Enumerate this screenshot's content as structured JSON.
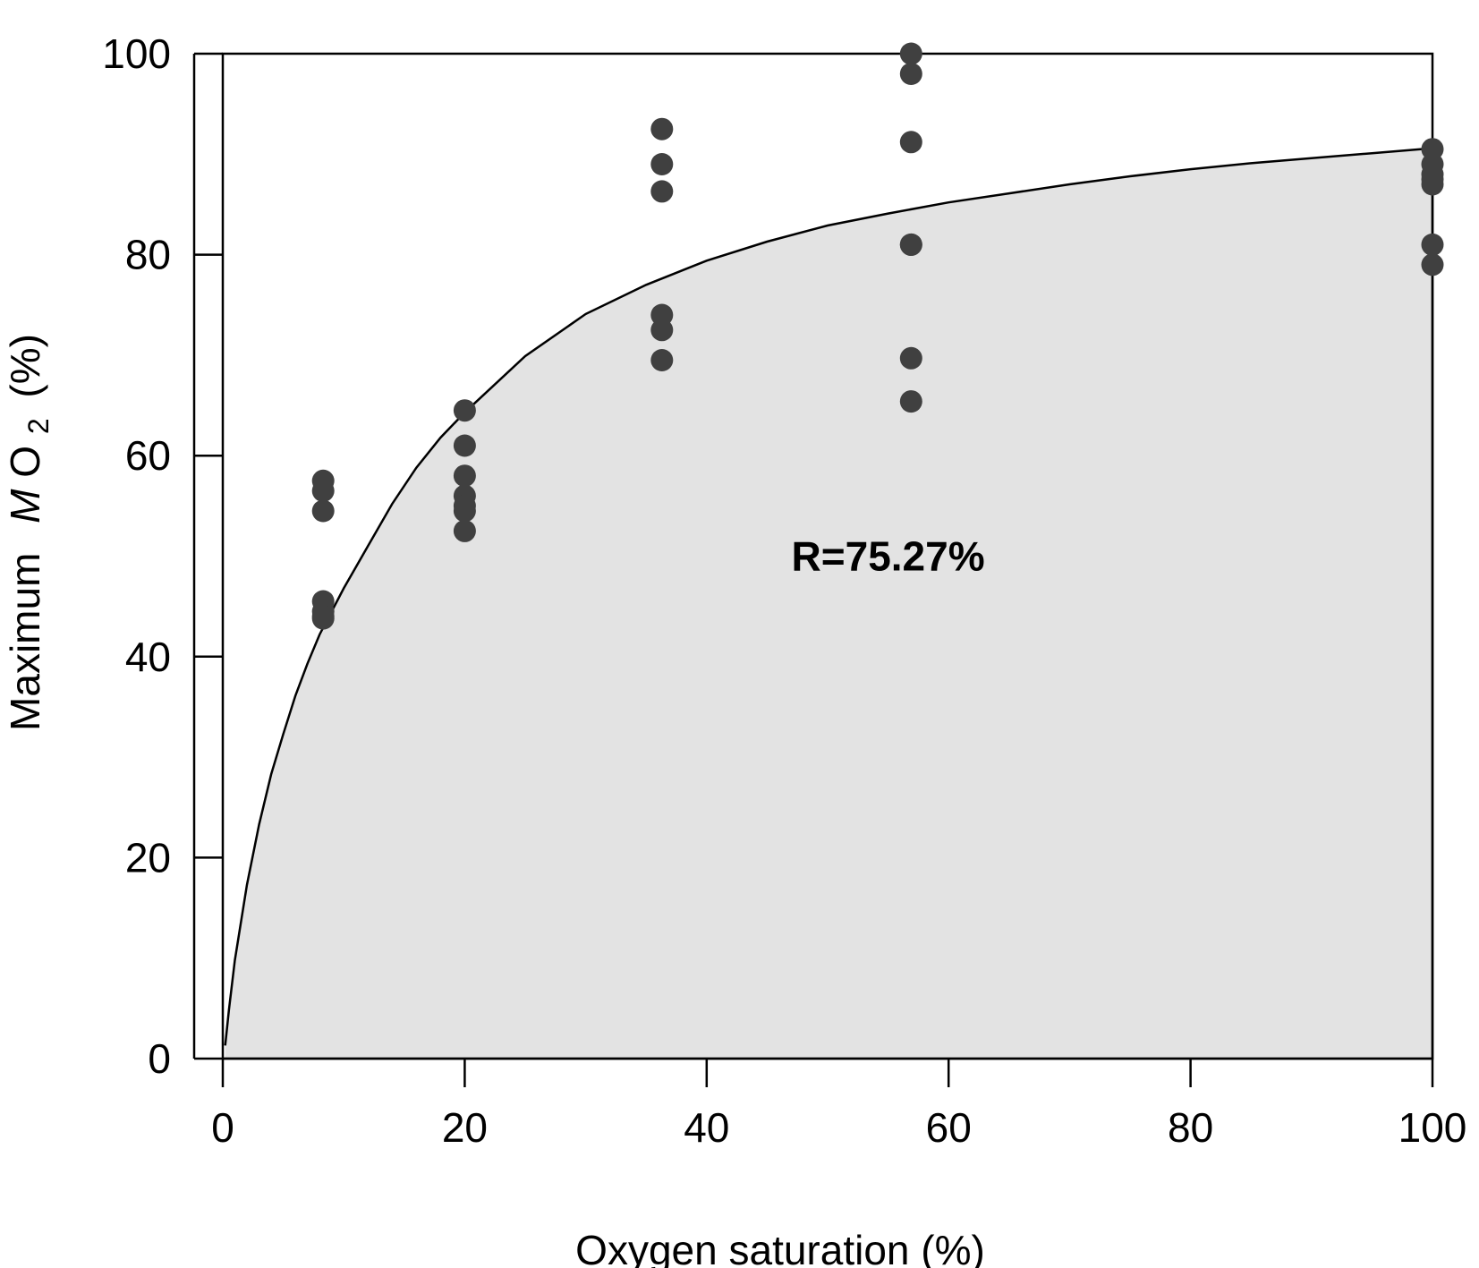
{
  "chart_data": {
    "type": "scatter",
    "title": "",
    "xlabel": "Oxygen saturation (%)",
    "ylabel": {
      "prefix": "Maximum",
      "var": "M",
      "var2": "O",
      "sub": "2",
      "suffix": "(%)"
    },
    "xlim": [
      0,
      100
    ],
    "ylim": [
      0,
      100
    ],
    "xticks": [
      "0",
      "20",
      "40",
      "60",
      "80",
      "100"
    ],
    "yticks": [
      "0",
      "20",
      "40",
      "60",
      "80",
      "100"
    ],
    "grid": false,
    "annotation": "R=75.27%",
    "annotation_position": {
      "x": 55,
      "y": 50
    },
    "colors": {
      "points": "#404040",
      "fill": "#e3e3e3",
      "curve": "#000000",
      "axis": "#000000"
    },
    "series": [
      {
        "x": [
          8.3,
          8.3,
          8.3,
          8.3,
          8.3,
          8.3,
          8.3
        ],
        "y": [
          57.5,
          56.5,
          54.5,
          45.5,
          44.5,
          44,
          43.8
        ]
      },
      {
        "x": [
          20,
          20,
          20,
          20,
          20,
          20,
          20
        ],
        "y": [
          64.5,
          61,
          58,
          56,
          54.5,
          52.5,
          55
        ]
      },
      {
        "x": [
          36.3,
          36.3,
          36.3,
          36.3,
          36.3,
          36.3
        ],
        "y": [
          92.5,
          89,
          86.3,
          74,
          72.5,
          69.5
        ]
      },
      {
        "x": [
          56.9,
          56.9,
          56.9,
          56.9,
          56.9,
          56.9,
          56.9
        ],
        "y": [
          100,
          98,
          91.2,
          81,
          69.7,
          65.4,
          81
        ]
      },
      {
        "x": [
          100,
          100,
          100,
          100,
          100,
          100,
          100
        ],
        "y": [
          90.5,
          89,
          88,
          87,
          81,
          79,
          87.5
        ]
      }
    ],
    "curve": {
      "x": [
        0.2,
        0.5,
        1,
        2,
        3,
        4,
        5,
        6,
        7,
        8,
        10,
        12,
        14,
        16,
        18,
        20,
        25,
        30,
        35,
        40,
        45,
        50,
        55,
        60,
        65,
        70,
        75,
        80,
        85,
        90,
        95,
        100
      ],
      "y": [
        1.3,
        4.8,
        9.8,
        17.3,
        23.3,
        28.3,
        32.3,
        36.1,
        39.3,
        42.2,
        46.8,
        51,
        55.2,
        58.8,
        61.8,
        64.3,
        69.9,
        74.1,
        77,
        79.4,
        81.3,
        82.9,
        84.1,
        85.2,
        86.1,
        87,
        87.8,
        88.5,
        89.1,
        89.6,
        90.1,
        90.6
      ]
    }
  }
}
